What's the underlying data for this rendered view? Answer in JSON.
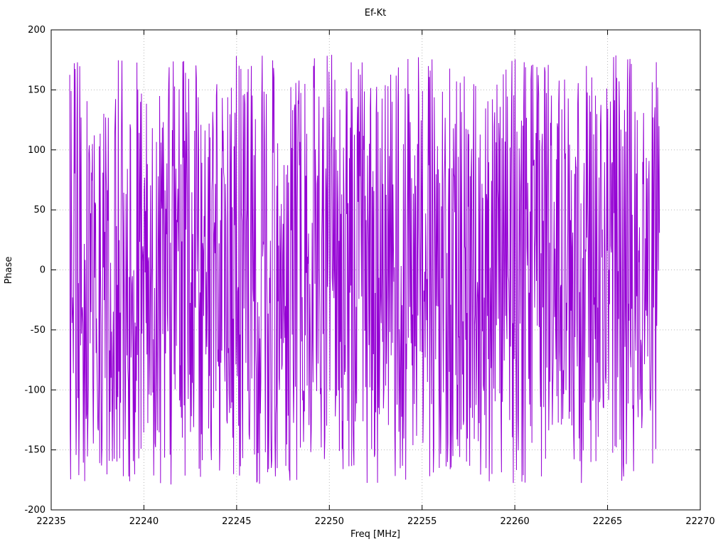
{
  "chart_data": {
    "type": "line",
    "title": "Ef-Kt",
    "xlabel": "Freq [MHz]",
    "ylabel": "Phase",
    "xlim": [
      22235,
      22270
    ],
    "ylim": [
      -200,
      200
    ],
    "x_ticks": [
      22235,
      22240,
      22245,
      22250,
      22255,
      22260,
      22265,
      22270
    ],
    "y_ticks": [
      -200,
      -150,
      -100,
      -50,
      0,
      50,
      100,
      150,
      200
    ],
    "grid": true,
    "grid_style": "dotted",
    "legend": "none",
    "plot_background": "#ffffff",
    "border_color": "#000000",
    "grid_color": "#b8b8b8",
    "series": [
      {
        "name": "phase",
        "color": "#9400d3",
        "line_width": 1,
        "description": "Densely wrapped phase-noise trace oscillating between -180 and +180 degrees across the measured band",
        "x_start": 22236.0,
        "x_end": 22267.8,
        "n_points": 1300,
        "y_wrap_min": -180,
        "y_wrap_max": 180,
        "generator_seed": 987654321
      }
    ]
  }
}
